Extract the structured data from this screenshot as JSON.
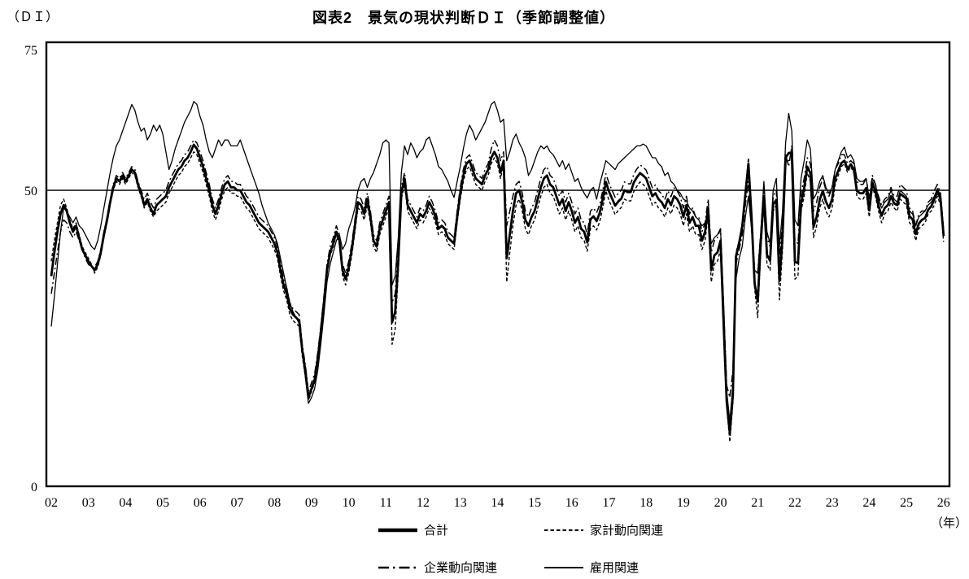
{
  "chart_data": {
    "type": "line",
    "title": "図表2　景気の現状判断ＤＩ（季節調整値）",
    "y_unit_label": "（ＤＩ）",
    "x_unit_label": "（年）",
    "xlabel": "年",
    "ylabel": "DI",
    "ylim": [
      0,
      75
    ],
    "grid": "single horizontal reference line at 50",
    "reference_line": 50,
    "legend_position": "below chart, two rows",
    "y_ticks": [
      {
        "value": 0,
        "label": "0"
      },
      {
        "value": 50,
        "label": "50"
      },
      {
        "value": 75,
        "label": "75"
      }
    ],
    "x_start_year": 2002,
    "x_points_per_year": 12,
    "x_tick_labels": [
      "02",
      "03",
      "04",
      "05",
      "06",
      "07",
      "08",
      "09",
      "10",
      "11",
      "12",
      "13",
      "14",
      "15",
      "16",
      "17",
      "18",
      "19",
      "20",
      "21",
      "22",
      "23",
      "24",
      "25",
      "26"
    ],
    "series": [
      {
        "id": "total",
        "name": "合計",
        "style": "solid-thick",
        "values": [
          35.5,
          39.5,
          43,
          46,
          47.5,
          46.5,
          44.5,
          43,
          44,
          42,
          40,
          39,
          38,
          37.2,
          36.5,
          37.5,
          39.5,
          42.5,
          45,
          48,
          50.5,
          52,
          51.5,
          52.5,
          51.5,
          52.5,
          53.5,
          53,
          51,
          49.5,
          47.5,
          48.5,
          47,
          46,
          47.5,
          48,
          48.5,
          49,
          50.5,
          51.5,
          52.5,
          53.5,
          54,
          55,
          55.5,
          56.5,
          57.7,
          57,
          55.5,
          54,
          52,
          50,
          47.5,
          46,
          47.5,
          49.5,
          51,
          51.5,
          50.5,
          50.5,
          50,
          50,
          49,
          48,
          47.5,
          46.5,
          45.5,
          44.5,
          44,
          43.5,
          43,
          42,
          41,
          39.5,
          36.5,
          34,
          32.5,
          30,
          29,
          28.5,
          28,
          23,
          19.5,
          15,
          16.5,
          18,
          21.5,
          26,
          31,
          36.5,
          39.5,
          41,
          43,
          41.5,
          36.5,
          35,
          37,
          40,
          44,
          48,
          47.5,
          46,
          48.5,
          45.5,
          41.5,
          40.5,
          43.5,
          45,
          46.5,
          48,
          27.7,
          29.5,
          38,
          49.5,
          52,
          47.5,
          46.5,
          45.5,
          44.5,
          46,
          45.5,
          46.5,
          48,
          47,
          45.5,
          43.5,
          44,
          43.5,
          42,
          41.5,
          41,
          45.5,
          49.5,
          52.5,
          54.5,
          55,
          53.5,
          52,
          51.5,
          51,
          52.5,
          53.5,
          55.5,
          56.5,
          55.5,
          53,
          55,
          38.5,
          42.5,
          46.5,
          49.5,
          50,
          48,
          45,
          44,
          45.5,
          46.5,
          48.5,
          50.5,
          52,
          52.5,
          51,
          50.5,
          49,
          47.5,
          48.5,
          46.5,
          48,
          46.5,
          44.5,
          45.5,
          43.5,
          43,
          41.2,
          45.1,
          45.6,
          44.8,
          46.2,
          48.6,
          51.4,
          49.8,
          48.6,
          47.4,
          48.1,
          48.6,
          50,
          49.7,
          49.7,
          51.3,
          52.2,
          52.9,
          52.5,
          52,
          50.5,
          49,
          49.5,
          48.5,
          48,
          47,
          48.5,
          47.5,
          49,
          48.5,
          47.5,
          45.5,
          47.5,
          44.5,
          45.5,
          44,
          44,
          41.5,
          43,
          47,
          36.5,
          39,
          39.5,
          41.5,
          27.4,
          14.2,
          9,
          15.5,
          38.8,
          41.1,
          43.9,
          49.3,
          54.5,
          45.6,
          34.3,
          31.2,
          41.3,
          49,
          39.1,
          38.1,
          47.6,
          48.4,
          34.7,
          42.1,
          55.5,
          56.3,
          56.4,
          37.9,
          37.7,
          47.8,
          50.4,
          54,
          52.9,
          43.8,
          45.5,
          48.4,
          49.9,
          48.1,
          47,
          48.5,
          52,
          53.3,
          54.6,
          55,
          53.6,
          54.4,
          53.6,
          49.9,
          49.5,
          49.5,
          50.4,
          46.6,
          51.3,
          49.8,
          47.4,
          45.7,
          47,
          47.5,
          49,
          47.8,
          47.5,
          49.4,
          49,
          48.6,
          45.6,
          45.1,
          42.6,
          44.4,
          45,
          45.3,
          46.7,
          47.3,
          48.5,
          49.8,
          48.5,
          42.3
        ]
      },
      {
        "id": "household",
        "name": "家計動向関連",
        "style": "dashed",
        "values": [
          38,
          41.5,
          44.5,
          47.5,
          48.5,
          47,
          45,
          43.5,
          44.5,
          42.5,
          40.5,
          39.5,
          38.5,
          37.5,
          36,
          37,
          39,
          42,
          44.5,
          47.5,
          50,
          51.5,
          51,
          52,
          51,
          52,
          53,
          52.5,
          50.5,
          49,
          47,
          48,
          46.5,
          45.5,
          46.5,
          47,
          47.5,
          48,
          49.5,
          50.5,
          51.5,
          52.5,
          53,
          54,
          54.5,
          55.5,
          56.5,
          56,
          54.5,
          53,
          51,
          49,
          46.5,
          45,
          46.5,
          48.5,
          50,
          50.5,
          49.5,
          49.5,
          49,
          49,
          48,
          47,
          46.5,
          45.5,
          44.5,
          43.5,
          43,
          42.5,
          42,
          41,
          40,
          38.5,
          35.5,
          33,
          31.5,
          29,
          28,
          27.5,
          27,
          22,
          18.5,
          14.5,
          16,
          17.5,
          21,
          25.5,
          30.5,
          36,
          39,
          40.5,
          42.5,
          41,
          35.5,
          34,
          36,
          39,
          43,
          47,
          46.5,
          45,
          47.5,
          44.5,
          40.5,
          39.5,
          42.5,
          44,
          45.5,
          47,
          24,
          26.5,
          36,
          48.5,
          51,
          46.5,
          45.5,
          44.5,
          43.5,
          45,
          44.5,
          45.5,
          47,
          46,
          44.5,
          42.5,
          43,
          42.5,
          41,
          40.5,
          40,
          44.5,
          48.5,
          51.5,
          53.5,
          54,
          52.5,
          51,
          50.5,
          50,
          51.5,
          52.5,
          54.5,
          55.5,
          54.5,
          52,
          54.5,
          34.5,
          39.5,
          44,
          47.5,
          48.5,
          46.5,
          43.5,
          42.5,
          44,
          45,
          47,
          49,
          50.5,
          51,
          49.5,
          49,
          47.5,
          46,
          47,
          45,
          46.5,
          45,
          43,
          44,
          42,
          41.5,
          39.7,
          43.5,
          44,
          43.3,
          44.7,
          47.1,
          49.9,
          48.3,
          47.1,
          45.9,
          46.6,
          47.1,
          48.5,
          48.2,
          48.2,
          49.8,
          50.7,
          51.4,
          51,
          50.5,
          49,
          47.5,
          48,
          47,
          46.5,
          45.5,
          47,
          46,
          47.5,
          47,
          46,
          44,
          46,
          43,
          44,
          42.5,
          42.5,
          40,
          41.5,
          46,
          34.5,
          37.5,
          38,
          40,
          26,
          13.5,
          7.5,
          14,
          39.5,
          41.5,
          44.5,
          50,
          55.5,
          46,
          33.5,
          28.5,
          40,
          48,
          37.5,
          36.5,
          46.5,
          47.5,
          31.5,
          40,
          55,
          55,
          55.5,
          35,
          35.5,
          46.5,
          49,
          53,
          51.5,
          42,
          44,
          47,
          48.5,
          46.5,
          45.5,
          47,
          51,
          52.5,
          54,
          54.5,
          53,
          54,
          53,
          49,
          48.5,
          48.5,
          49.5,
          45.5,
          50.5,
          49,
          46.5,
          44.5,
          46,
          46.5,
          48,
          47,
          46.5,
          48.5,
          48,
          47.5,
          44.5,
          44,
          41.5,
          43.5,
          44,
          44.5,
          46,
          46.5,
          47.5,
          49,
          47.5,
          41.3
        ]
      },
      {
        "id": "corporate",
        "name": "企業動向関連",
        "style": "dash-dot",
        "values": [
          32.5,
          36,
          39.5,
          43,
          45,
          44.5,
          43,
          42,
          43,
          41.5,
          40,
          38.5,
          37.5,
          37,
          37,
          38,
          40,
          43,
          45.5,
          48.5,
          51,
          52.5,
          52,
          53,
          52,
          53,
          54,
          53.5,
          51.5,
          50,
          48.5,
          49.5,
          48,
          47,
          48.5,
          49,
          49.5,
          50,
          51.5,
          52.5,
          53.5,
          54.5,
          55,
          56,
          56.5,
          57.5,
          58.5,
          58,
          56.5,
          55,
          53,
          51,
          48.5,
          47,
          48.5,
          50.5,
          52,
          52.5,
          51.5,
          51.5,
          51,
          51,
          50,
          49,
          48.5,
          47.5,
          46.5,
          45.5,
          45,
          44.5,
          44,
          43,
          42,
          40.5,
          37.5,
          35,
          33.5,
          31,
          30,
          29.5,
          29,
          24,
          20.5,
          16,
          17.5,
          19,
          22.5,
          27,
          32,
          37.5,
          40.5,
          42,
          44,
          42.5,
          37.5,
          36,
          38,
          41,
          45,
          49,
          48.5,
          47,
          49.5,
          46.5,
          42.5,
          41.5,
          44.5,
          46,
          47.5,
          49,
          31,
          32.5,
          40,
          50.5,
          53,
          48.5,
          47.5,
          46.5,
          45.5,
          47,
          46.5,
          47.5,
          49,
          48,
          46.5,
          44.5,
          45,
          44.5,
          43,
          42.5,
          42,
          46.5,
          50.5,
          53.5,
          55.5,
          56,
          54.5,
          53,
          52.5,
          52,
          53.5,
          54.5,
          57,
          58.5,
          57.5,
          55,
          56.5,
          44,
          46.5,
          49,
          51,
          51.5,
          49.5,
          46.5,
          45.5,
          47,
          48,
          50,
          52,
          53.5,
          54,
          52.5,
          52,
          50.5,
          49,
          50,
          48,
          49.5,
          48,
          46,
          47,
          45,
          44.5,
          42.5,
          46.5,
          47,
          46.2,
          47.6,
          50,
          52.8,
          51.2,
          50,
          48.8,
          49.5,
          50,
          51.4,
          51.1,
          51.1,
          52.7,
          53.6,
          54.3,
          53.9,
          53.4,
          51.9,
          50.4,
          50.9,
          49.9,
          49.4,
          48.4,
          49.9,
          48.9,
          50.4,
          49.9,
          48.9,
          47,
          49,
          46,
          47,
          45.5,
          45.5,
          43,
          44.5,
          48.5,
          39.5,
          41.5,
          42,
          43.5,
          30.5,
          17,
          15,
          19.5,
          37.5,
          40,
          42.5,
          47.5,
          51.5,
          44.5,
          36.5,
          36,
          43,
          50.5,
          42,
          40.5,
          49,
          50,
          38.5,
          44.5,
          56,
          54,
          57.5,
          41.5,
          41,
          49.5,
          52,
          55.5,
          54.5,
          46.5,
          48,
          50.5,
          52,
          50,
          49,
          50.5,
          53.5,
          54.5,
          56,
          56,
          54.5,
          55,
          54.5,
          51.5,
          51,
          51,
          52,
          48.5,
          52.5,
          51,
          49,
          47.5,
          48.5,
          49,
          50.5,
          49,
          49,
          51,
          50.5,
          50,
          47,
          46.5,
          44,
          46,
          46.5,
          46.5,
          48,
          48.5,
          50,
          51,
          49.5,
          43.3
        ]
      },
      {
        "id": "employment",
        "name": "雇用関連",
        "style": "solid-thin",
        "values": [
          27,
          32,
          37.5,
          43,
          47,
          46.5,
          45.5,
          44.5,
          45.5,
          44,
          43.5,
          42.5,
          41.5,
          40.5,
          40,
          41.5,
          44,
          47,
          50,
          53,
          55.5,
          57.5,
          58.5,
          60,
          61.5,
          63,
          64.5,
          63.5,
          61.5,
          60,
          60.5,
          58.5,
          59.5,
          61,
          60,
          61,
          59.5,
          56.5,
          53.5,
          55,
          57,
          58.5,
          60,
          61.5,
          62.5,
          63.5,
          65,
          64.5,
          62.5,
          61,
          58.5,
          56.5,
          55.5,
          57,
          58.5,
          57.5,
          58.5,
          58.5,
          57.5,
          57.5,
          57.5,
          58.5,
          57,
          55.5,
          54,
          52.5,
          51,
          49.5,
          47.5,
          46,
          44.5,
          43.5,
          42.5,
          41,
          38.5,
          36,
          33.5,
          31,
          29.5,
          28.5,
          27.5,
          22.5,
          18.5,
          14,
          15,
          16.5,
          19.5,
          24,
          29,
          34.5,
          37.5,
          39.5,
          41.5,
          42.5,
          40,
          41,
          43.5,
          45,
          47,
          50,
          51.5,
          52,
          50.5,
          52,
          53,
          54.5,
          56,
          58,
          58.5,
          58,
          34,
          35.5,
          42,
          53,
          57.5,
          56,
          58,
          57,
          55.5,
          56.5,
          57,
          58.5,
          59,
          57.5,
          56,
          54,
          53.5,
          52.5,
          51.5,
          50,
          48.8,
          51.5,
          54,
          57,
          59.5,
          61,
          60,
          58.5,
          59.5,
          60.5,
          61.5,
          63,
          64.5,
          65,
          63.5,
          61.5,
          62,
          55,
          56.5,
          58.5,
          59.5,
          58,
          57,
          55.5,
          52.5,
          53.5,
          55,
          56.5,
          57.5,
          57,
          57.5,
          56.5,
          56,
          55,
          54,
          55,
          53.5,
          54.5,
          53,
          51.5,
          52,
          50.5,
          49.5,
          48.7,
          50,
          50.5,
          48.5,
          51,
          53,
          55,
          54.5,
          54,
          53.5,
          54.5,
          55,
          55.5,
          56,
          56.5,
          57,
          57.5,
          57.5,
          57.8,
          57.5,
          56.5,
          55.5,
          55.5,
          54.5,
          54,
          52.5,
          53,
          51.5,
          51,
          50,
          49.5,
          48.5,
          48.2,
          47,
          46.5,
          45.5,
          45,
          44,
          44.5,
          45.5,
          41,
          42,
          42.5,
          43.5,
          31,
          16,
          11,
          17,
          35,
          38.5,
          40.5,
          45.5,
          49,
          43.5,
          36.5,
          36,
          43,
          51.5,
          43,
          41,
          50,
          52,
          40.5,
          46.5,
          58,
          63,
          60,
          45,
          44,
          52,
          55,
          58.5,
          57,
          48.5,
          49.5,
          51.5,
          52.5,
          50.5,
          49.5,
          50.5,
          53.5,
          55,
          56.5,
          57.3,
          55.5,
          56,
          55,
          52,
          51.5,
          51.5,
          52,
          48.5,
          52,
          51,
          48.5,
          47,
          48,
          48.5,
          50,
          48.5,
          48,
          50,
          49.5,
          49,
          46.5,
          46,
          44,
          45.5,
          46,
          46.5,
          47.5,
          48,
          49,
          50.3,
          49,
          43
        ]
      }
    ]
  }
}
